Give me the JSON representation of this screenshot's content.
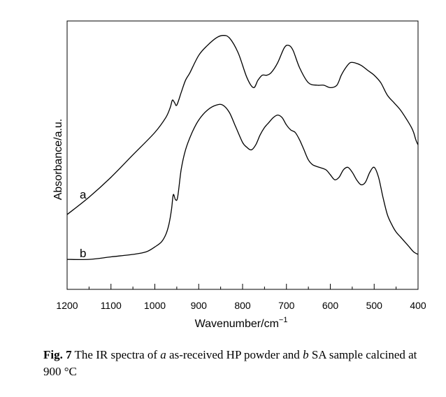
{
  "chart_data": {
    "type": "line",
    "xlabel": "Wavenumber/cm",
    "xlabel_sup": "−1",
    "ylabel": "Absorbance/a.u.",
    "xlim": [
      1200,
      400
    ],
    "x_reversed": true,
    "y_ticks_shown": false,
    "x_ticks": [
      1200,
      1100,
      1000,
      900,
      800,
      700,
      600,
      500,
      400
    ],
    "x_tick_labels": [
      "1200",
      "1100",
      "1000",
      "900",
      "800",
      "700",
      "600",
      "500",
      "400"
    ],
    "ylim": [
      0,
      100
    ],
    "series": [
      {
        "name": "a",
        "x": [
          1200,
          1150,
          1100,
          1050,
          1000,
          975,
          965,
          960,
          955,
          950,
          940,
          930,
          920,
          900,
          880,
          860,
          845,
          830,
          810,
          790,
          775,
          765,
          755,
          745,
          735,
          720,
          705,
          695,
          685,
          670,
          650,
          630,
          615,
          600,
          585,
          575,
          565,
          555,
          545,
          530,
          515,
          500,
          485,
          470,
          455,
          440,
          425,
          415,
          410,
          405,
          400
        ],
        "y": [
          25,
          32,
          40,
          49,
          58,
          64,
          68,
          71,
          70,
          69,
          74,
          79,
          82,
          89,
          93,
          96,
          97,
          96,
          90,
          80,
          76,
          79,
          81,
          81,
          82,
          86,
          92,
          93,
          91,
          84,
          78,
          77,
          77,
          76,
          77,
          81,
          84,
          86,
          86,
          85,
          83,
          81,
          78,
          73,
          70,
          67,
          63,
          60,
          58,
          55,
          53
        ]
      },
      {
        "name": "b",
        "x": [
          1200,
          1150,
          1100,
          1050,
          1020,
          1000,
          985,
          975,
          968,
          962,
          958,
          953,
          948,
          940,
          930,
          915,
          900,
          880,
          860,
          845,
          830,
          815,
          800,
          790,
          780,
          770,
          760,
          750,
          740,
          730,
          720,
          710,
          700,
          690,
          680,
          670,
          660,
          650,
          640,
          625,
          610,
          600,
          590,
          580,
          570,
          560,
          550,
          540,
          530,
          520,
          510,
          500,
          490,
          480,
          470,
          460,
          450,
          440,
          430,
          420,
          410,
          400
        ],
        "y": [
          7,
          7,
          8,
          9,
          10,
          12,
          14,
          17,
          21,
          27,
          33,
          31,
          32,
          43,
          51,
          58,
          63,
          67,
          69,
          69,
          66,
          60,
          54,
          52,
          51,
          53,
          57,
          60,
          62,
          64,
          65,
          64,
          61,
          59,
          58,
          55,
          51,
          47,
          45,
          44,
          43,
          41,
          39,
          40,
          43,
          44,
          42,
          39,
          37,
          38,
          42,
          44,
          40,
          32,
          25,
          21,
          18,
          16,
          14,
          12,
          10,
          9
        ]
      }
    ],
    "series_labels": [
      "a",
      "b"
    ]
  },
  "caption": {
    "fig_label": "Fig. 7",
    "text_1": " The IR spectra of ",
    "ital_a": "a",
    "text_2": " as-received HP powder and ",
    "ital_b": "b",
    "text_3": " SA sample calcined at 900 °C"
  }
}
